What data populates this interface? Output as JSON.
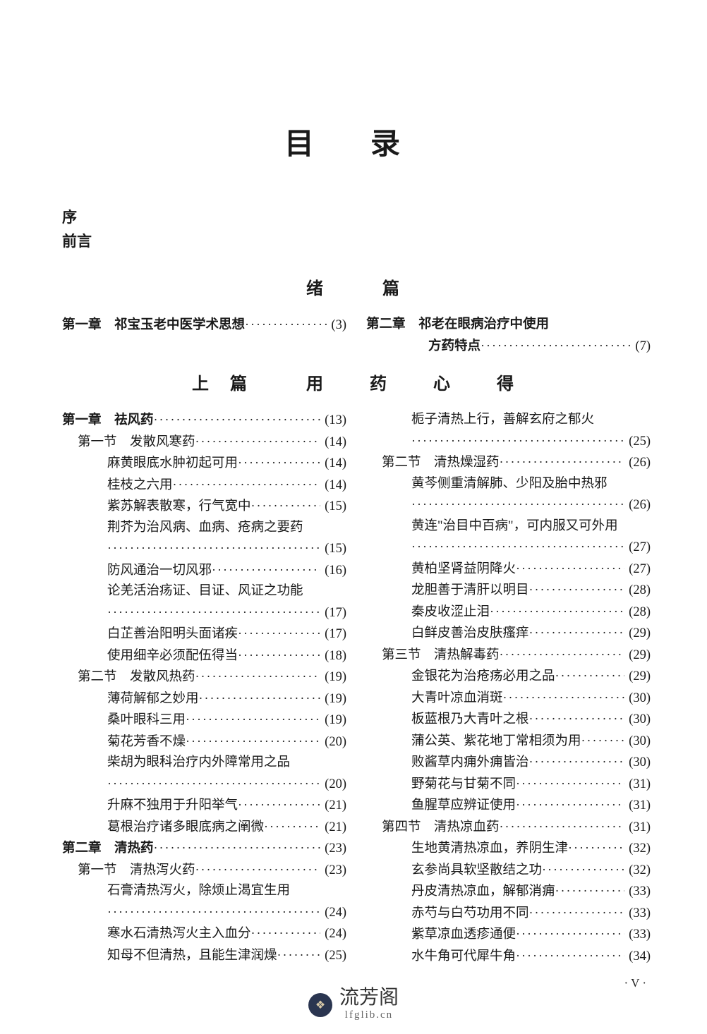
{
  "title": "目录",
  "pre": [
    "序",
    "前言"
  ],
  "part_xu": {
    "heading": "绪　篇",
    "left": [
      {
        "cls": "chapter",
        "label": "第一章　祁宝玉老中医学术思想",
        "page": "(3)"
      }
    ],
    "right": [
      {
        "cls": "chapter",
        "label": "第二章　祁老在眼病治疗中使用",
        "page": ""
      },
      {
        "cls": "chapter",
        "indent": "cont2",
        "label": "方药特点",
        "page": "(7)"
      }
    ]
  },
  "part_shang": {
    "heading": "上篇　用 药 心 得",
    "left": [
      {
        "cls": "chapter",
        "label": "第一章　祛风药",
        "page": "(13)"
      },
      {
        "cls": "section",
        "label": "第一节　发散风寒药",
        "page": "(14)"
      },
      {
        "cls": "entry",
        "label": "麻黄眼底水肿初起可用",
        "page": "(14)"
      },
      {
        "cls": "entry",
        "label": "桂枝之六用",
        "page": "(14)"
      },
      {
        "cls": "entry",
        "label": "紫苏解表散寒，行气宽中",
        "page": "(15)"
      },
      {
        "cls": "entry",
        "label": "荆芥为治风病、血病、疮病之要药",
        "page": ""
      },
      {
        "cls": "cont",
        "label": "",
        "page": "(15)"
      },
      {
        "cls": "entry",
        "label": "防风通治一切风邪",
        "page": "(16)"
      },
      {
        "cls": "entry",
        "label": "论羌活治疡证、目证、风证之功能",
        "page": ""
      },
      {
        "cls": "cont",
        "label": "",
        "page": "(17)"
      },
      {
        "cls": "entry",
        "label": "白芷善治阳明头面诸疾",
        "page": "(17)"
      },
      {
        "cls": "entry",
        "label": "使用细辛必须配伍得当",
        "page": "(18)"
      },
      {
        "cls": "section",
        "label": "第二节　发散风热药",
        "page": "(19)"
      },
      {
        "cls": "entry",
        "label": "薄荷解郁之妙用",
        "page": "(19)"
      },
      {
        "cls": "entry",
        "label": "桑叶眼科三用",
        "page": "(19)"
      },
      {
        "cls": "entry",
        "label": "菊花芳香不燥",
        "page": "(20)"
      },
      {
        "cls": "entry",
        "label": "柴胡为眼科治疗内外障常用之品",
        "page": ""
      },
      {
        "cls": "cont",
        "label": "",
        "page": "(20)"
      },
      {
        "cls": "entry",
        "label": "升麻不独用于升阳举气",
        "page": "(21)"
      },
      {
        "cls": "entry",
        "label": "葛根治疗诸多眼底病之阐微",
        "page": "(21)"
      },
      {
        "cls": "chapter",
        "label": "第二章　清热药",
        "page": "(23)"
      },
      {
        "cls": "section",
        "label": "第一节　清热泻火药",
        "page": "(23)"
      },
      {
        "cls": "entry",
        "label": "石膏清热泻火，除烦止渴宜生用",
        "page": ""
      },
      {
        "cls": "cont",
        "label": "",
        "page": "(24)"
      },
      {
        "cls": "entry",
        "label": "寒水石清热泻火主入血分",
        "page": "(24)"
      },
      {
        "cls": "entry",
        "label": "知母不但清热，且能生津润燥",
        "page": "(25)"
      }
    ],
    "right": [
      {
        "cls": "entry",
        "label": "栀子清热上行，善解玄府之郁火",
        "page": ""
      },
      {
        "cls": "cont",
        "label": "",
        "page": "(25)"
      },
      {
        "cls": "section",
        "label": "第二节　清热燥湿药",
        "page": "(26)"
      },
      {
        "cls": "entry",
        "label": "黄芩侧重清解肺、少阳及胎中热邪",
        "page": ""
      },
      {
        "cls": "cont",
        "label": "",
        "page": "(26)"
      },
      {
        "cls": "entry",
        "label": "黄连\"治目中百病\"，可内服又可外用",
        "page": ""
      },
      {
        "cls": "cont",
        "label": "",
        "page": "(27)"
      },
      {
        "cls": "entry",
        "label": "黄柏坚肾益阴降火",
        "page": "(27)"
      },
      {
        "cls": "entry",
        "label": "龙胆善于清肝以明目",
        "page": "(28)"
      },
      {
        "cls": "entry",
        "label": "秦皮收涩止泪",
        "page": "(28)"
      },
      {
        "cls": "entry",
        "label": "白鲜皮善治皮肤瘙痒",
        "page": "(29)"
      },
      {
        "cls": "section",
        "label": "第三节　清热解毒药",
        "page": "(29)"
      },
      {
        "cls": "entry",
        "label": "金银花为治疮疡必用之品",
        "page": "(29)"
      },
      {
        "cls": "entry",
        "label": "大青叶凉血消斑",
        "page": "(30)"
      },
      {
        "cls": "entry",
        "label": "板蓝根乃大青叶之根",
        "page": "(30)"
      },
      {
        "cls": "entry",
        "label": "蒲公英、紫花地丁常相须为用",
        "page": "(30)"
      },
      {
        "cls": "entry",
        "label": "败酱草内痈外痈皆治",
        "page": "(30)"
      },
      {
        "cls": "entry",
        "label": "野菊花与甘菊不同",
        "page": "(31)"
      },
      {
        "cls": "entry",
        "label": "鱼腥草应辨证使用",
        "page": "(31)"
      },
      {
        "cls": "section",
        "label": "第四节　清热凉血药",
        "page": "(31)"
      },
      {
        "cls": "entry",
        "label": "生地黄清热凉血，养阴生津",
        "page": "(32)"
      },
      {
        "cls": "entry",
        "label": "玄参尚具软坚散结之功",
        "page": "(32)"
      },
      {
        "cls": "entry",
        "label": "丹皮清热凉血，解郁消痈",
        "page": "(33)"
      },
      {
        "cls": "entry",
        "label": "赤芍与白芍功用不同",
        "page": "(33)"
      },
      {
        "cls": "entry",
        "label": "紫草凉血透疹通便",
        "page": "(33)"
      },
      {
        "cls": "entry",
        "label": "水牛角可代犀牛角",
        "page": "(34)"
      }
    ]
  },
  "page_marker": "· V ·",
  "footer": {
    "site_name": "流芳阁",
    "site_url": "lfglib.cn"
  },
  "colors": {
    "text": "#1a1a1a",
    "bg": "#ffffff",
    "logo_bg": "#2a3550",
    "muted": "#666"
  },
  "typography": {
    "title_fontsize": 42,
    "body_fontsize": 18.5,
    "line_height": 29.5
  }
}
